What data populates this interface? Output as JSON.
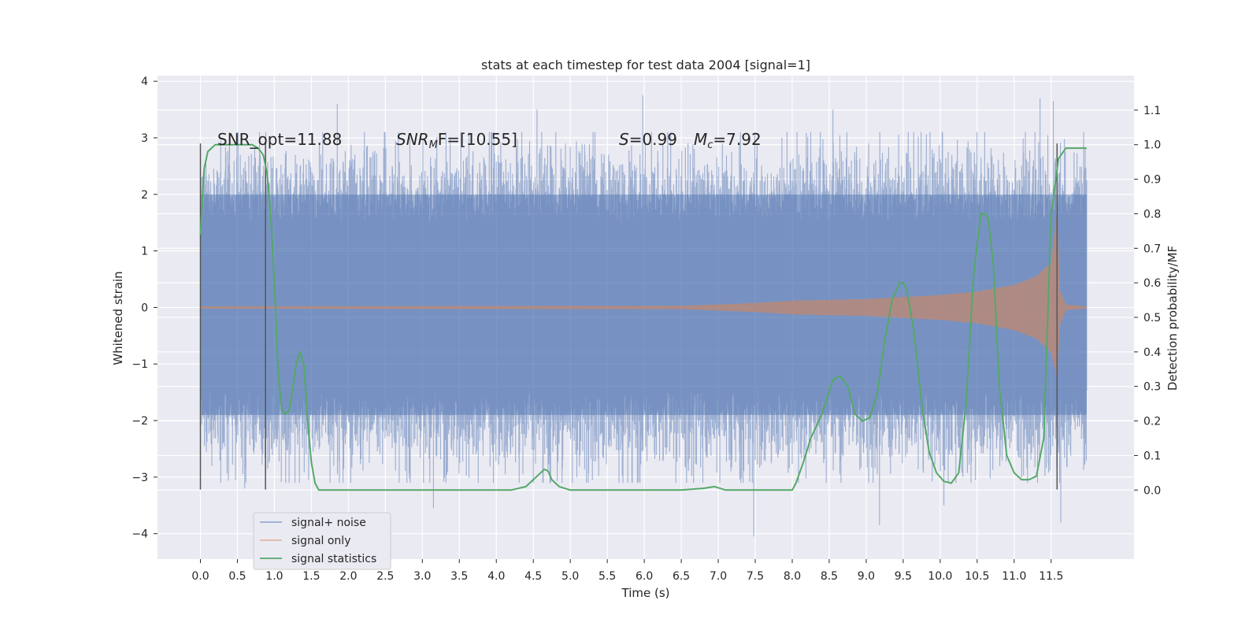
{
  "chart_data": {
    "type": "line",
    "title": "stats at each timestep for test data 2004 [signal=1]",
    "xlabel": "Time (s)",
    "ylabel": "Whitened strain",
    "ylabel_right": "Detection probability/MF",
    "xlim": [
      -0.58,
      12.62
    ],
    "ylim": [
      -4.45,
      4.1
    ],
    "ylim_right": [
      -0.2,
      1.2
    ],
    "x_ticks": [
      "0.0",
      "0.5",
      "1.0",
      "1.5",
      "2.0",
      "2.5",
      "3.0",
      "3.5",
      "4.0",
      "4.5",
      "5.0",
      "5.5",
      "6.0",
      "6.5",
      "7.0",
      "7.5",
      "8.0",
      "8.5",
      "9.0",
      "9.5",
      "10.0",
      "10.5",
      "11.0",
      "11.5"
    ],
    "y_ticks": [
      "4",
      "3",
      "2",
      "1",
      "0",
      "−1",
      "−2",
      "−3",
      "−4"
    ],
    "y_ticks_right": [
      "1.1",
      "1.0",
      "0.9",
      "0.8",
      "0.7",
      "0.6",
      "0.5",
      "0.4",
      "0.3",
      "0.2",
      "0.1",
      "0.0"
    ],
    "annotations": {
      "snr_opt": "SNR_opt=11.88",
      "snr_mf_base": "SNR",
      "snr_mf_sub": "M",
      "snr_mf_rest": "F=[10.55]",
      "s_label": "S",
      "s_value": "=0.99",
      "mc_base": "M",
      "mc_sub": "c",
      "mc_value": "=7.92"
    },
    "vertical_markers": [
      0.0,
      0.88,
      11.58
    ],
    "grid": true,
    "legend_position": "lower-left",
    "series": [
      {
        "name": "signal+ noise",
        "axis": "left",
        "color": "#4c72b0",
        "envelope": {
          "t_range": [
            0.0,
            11.98
          ],
          "typical_amplitude": 1.7,
          "extremes": [
            {
              "t": 1.85,
              "y": 3.6
            },
            {
              "t": 4.55,
              "y": 3.5
            },
            {
              "t": 5.98,
              "y": 3.75
            },
            {
              "t": 8.55,
              "y": 3.5
            },
            {
              "t": 11.35,
              "y": 3.7
            },
            {
              "t": 11.53,
              "y": 3.65
            },
            {
              "t": 3.15,
              "y": -3.55
            },
            {
              "t": 7.48,
              "y": -4.05
            },
            {
              "t": 9.18,
              "y": -3.85
            },
            {
              "t": 11.63,
              "y": -3.8
            },
            {
              "t": 10.05,
              "y": -3.5
            },
            {
              "t": 0.6,
              "y": -3.2
            }
          ]
        }
      },
      {
        "name": "signal only",
        "axis": "left",
        "color": "#dd8452",
        "envelope": {
          "t_range": [
            0.0,
            11.98
          ],
          "points": [
            [
              0.0,
              0.02
            ],
            [
              6.5,
              0.03
            ],
            [
              7.5,
              0.08
            ],
            [
              8.0,
              0.12
            ],
            [
              9.0,
              0.15
            ],
            [
              10.0,
              0.22
            ],
            [
              10.5,
              0.28
            ],
            [
              11.0,
              0.4
            ],
            [
              11.3,
              0.55
            ],
            [
              11.5,
              0.8
            ],
            [
              11.58,
              1.7
            ],
            [
              11.62,
              0.3
            ],
            [
              11.7,
              0.05
            ],
            [
              11.98,
              0.02
            ]
          ]
        }
      },
      {
        "name": "signal statistics",
        "axis": "right",
        "color": "#55a868",
        "x": [
          0.0,
          0.05,
          0.1,
          0.15,
          0.2,
          0.3,
          0.5,
          0.7,
          0.78,
          0.85,
          0.9,
          0.95,
          1.0,
          1.05,
          1.1,
          1.15,
          1.2,
          1.25,
          1.3,
          1.35,
          1.4,
          1.45,
          1.5,
          1.55,
          1.6,
          1.65,
          1.7,
          2.0,
          3.0,
          3.3,
          3.5,
          3.8,
          4.2,
          4.4,
          4.5,
          4.6,
          4.65,
          4.7,
          4.75,
          4.85,
          5.0,
          5.3,
          5.6,
          6.0,
          6.5,
          6.8,
          6.95,
          7.1,
          7.3,
          7.6,
          8.0,
          8.05,
          8.15,
          8.25,
          8.4,
          8.55,
          8.65,
          8.75,
          8.85,
          8.95,
          9.05,
          9.15,
          9.25,
          9.35,
          9.45,
          9.5,
          9.55,
          9.65,
          9.75,
          9.85,
          9.95,
          10.05,
          10.15,
          10.25,
          10.35,
          10.45,
          10.55,
          10.6,
          10.65,
          10.72,
          10.8,
          10.9,
          11.0,
          11.1,
          11.2,
          11.3,
          11.4,
          11.5,
          11.6,
          11.7,
          11.8,
          11.9,
          11.98
        ],
        "y": [
          0.74,
          0.93,
          0.98,
          0.99,
          1.0,
          1.0,
          1.0,
          1.0,
          0.99,
          0.97,
          0.92,
          0.8,
          0.6,
          0.35,
          0.23,
          0.22,
          0.23,
          0.3,
          0.37,
          0.4,
          0.36,
          0.2,
          0.08,
          0.02,
          0.0,
          0.0,
          0.0,
          0.0,
          0.0,
          0.0,
          0.0,
          0.0,
          0.0,
          0.01,
          0.03,
          0.05,
          0.06,
          0.055,
          0.03,
          0.01,
          0.0,
          0.0,
          0.0,
          0.0,
          0.0,
          0.005,
          0.01,
          0.0,
          0.0,
          0.0,
          0.0,
          0.02,
          0.08,
          0.15,
          0.22,
          0.32,
          0.33,
          0.3,
          0.22,
          0.2,
          0.21,
          0.28,
          0.43,
          0.55,
          0.6,
          0.6,
          0.58,
          0.45,
          0.25,
          0.11,
          0.05,
          0.025,
          0.02,
          0.05,
          0.25,
          0.62,
          0.8,
          0.8,
          0.79,
          0.65,
          0.3,
          0.1,
          0.05,
          0.03,
          0.03,
          0.04,
          0.15,
          0.8,
          0.96,
          0.99,
          0.99,
          0.99,
          0.99
        ]
      }
    ]
  }
}
